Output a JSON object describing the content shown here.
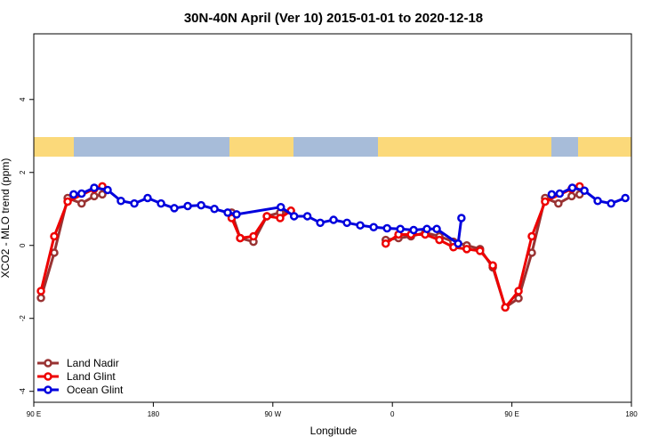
{
  "chart_data": {
    "type": "line",
    "title": "30N-40N April (Ver 10)   2015-01-01 to 2020-12-18",
    "x_label": "Longitude",
    "y_label": "XCO2 - MLO trend (ppm)",
    "xlim": [
      90,
      540
    ],
    "ylim": [
      -4.3,
      5.8
    ],
    "xticks": [
      {
        "value": 90,
        "label": "90 E"
      },
      {
        "value": 180,
        "label": "180"
      },
      {
        "value": 270,
        "label": "90 W"
      },
      {
        "value": 360,
        "label": "0"
      },
      {
        "value": 450,
        "label": "90 E"
      },
      {
        "value": 540,
        "label": "180"
      }
    ],
    "yticks": [
      -4,
      -2,
      0,
      2,
      4
    ],
    "legend": "bottom-left",
    "series": [
      {
        "name": "Land Nadir",
        "color": "#993333",
        "x": [
          95.4,
          105.4,
          115.5,
          126,
          135.5,
          141.6,
          null,
          239,
          245.4,
          255.4,
          265.5,
          275.5,
          283.6,
          null,
          355,
          364.6,
          374,
          384.7,
          395.4,
          406,
          416,
          426,
          435.6,
          445,
          455,
          465,
          475,
          485,
          495,
          501
        ],
        "values": [
          -1.44,
          -0.2,
          1.3,
          1.15,
          1.35,
          1.4,
          null,
          0.9,
          0.2,
          0.1,
          0.8,
          0.9,
          0.95,
          null,
          0.15,
          0.2,
          0.25,
          0.35,
          0.25,
          0.1,
          0,
          -0.1,
          -0.6,
          -1.7,
          -1.45,
          -0.2,
          1.3,
          1.15,
          1.35,
          1.4
        ]
      },
      {
        "name": "Land Glint",
        "color": "#ee0000",
        "x": [
          95.4,
          105.4,
          115.5,
          135.5,
          141.6,
          null,
          239,
          245.4,
          255.4,
          265.5,
          275.5,
          283.6,
          null,
          355,
          364.6,
          374,
          384.7,
          395.4,
          406,
          416,
          426,
          435.6,
          445,
          455,
          465,
          475,
          495,
          501
        ],
        "values": [
          -1.25,
          0.25,
          1.2,
          1.55,
          1.62,
          null,
          0.75,
          0.2,
          0.25,
          0.8,
          0.75,
          0.95,
          null,
          0.05,
          0.3,
          0.3,
          0.3,
          0.15,
          -0.05,
          -0.1,
          -0.15,
          -0.55,
          -1.7,
          -1.25,
          0.25,
          1.2,
          1.55,
          1.62
        ]
      },
      {
        "name": "Ocean Glint",
        "color": "#0000dd",
        "x": [
          120,
          126,
          135.5,
          145.6,
          155.6,
          165.7,
          175.7,
          185.8,
          195.8,
          205.9,
          216,
          226,
          236,
          242.7,
          276,
          286,
          296,
          305.7,
          315.7,
          325.8,
          335.8,
          345.9,
          356,
          366,
          376,
          386,
          393.4,
          409.5,
          412,
          null,
          480,
          486,
          495.5,
          504.6,
          514.6,
          524.7,
          535.4
        ],
        "values": [
          1.4,
          1.42,
          1.58,
          1.52,
          1.22,
          1.15,
          1.3,
          1.15,
          1.02,
          1.08,
          1.1,
          1.0,
          0.9,
          0.85,
          1.05,
          0.8,
          0.8,
          0.62,
          0.7,
          0.62,
          0.55,
          0.5,
          0.47,
          0.45,
          0.42,
          0.45,
          0.45,
          0.05,
          0.75,
          null,
          1.4,
          1.42,
          1.58,
          1.5,
          1.22,
          1.15,
          1.3
        ]
      }
    ]
  }
}
